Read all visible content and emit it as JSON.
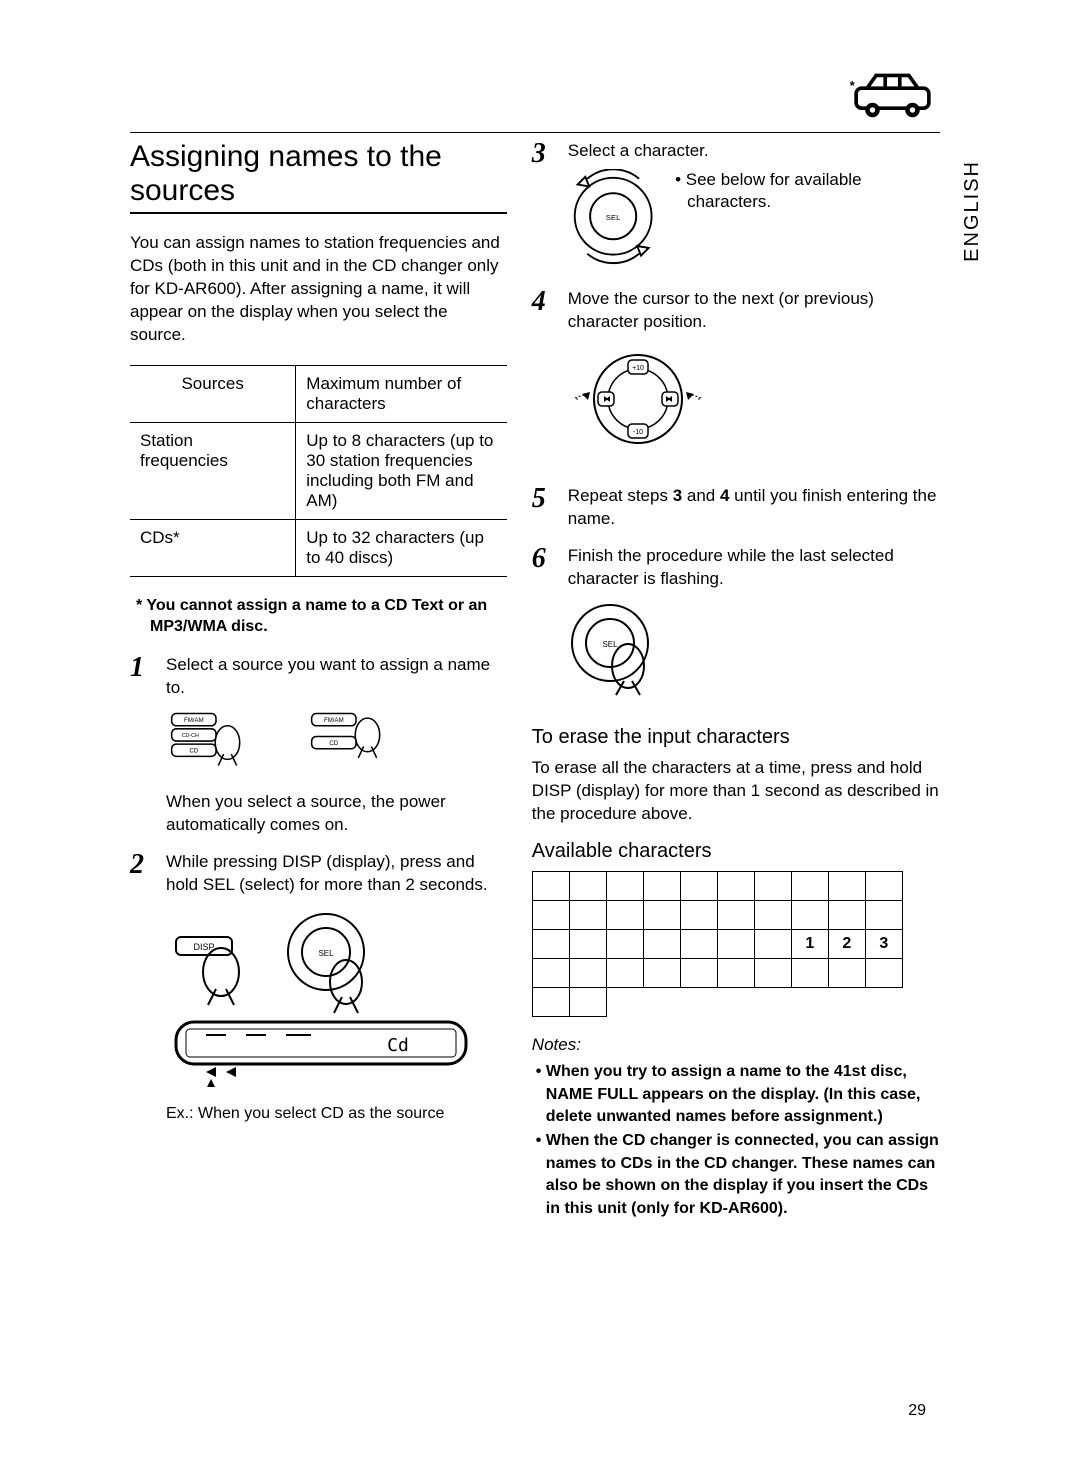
{
  "page_number": "29",
  "language_tab": "ENGLISH",
  "title": "Assigning names to the sources",
  "intro": "You can assign names to station frequencies and CDs (both in this unit and in the CD changer only for KD-AR600).\nAfter assigning a name, it will appear on the display when you select the source.",
  "table": {
    "headers": [
      "Sources",
      "Maximum number of characters"
    ],
    "rows": [
      [
        "Station frequencies",
        "Up to 8 characters (up to 30 station frequencies including both FM and AM)"
      ],
      [
        "CDs*",
        "Up to 32 characters (up to 40 discs)"
      ]
    ]
  },
  "footnote": "* You cannot assign a name to a CD Text or an MP3/WMA disc.",
  "steps_left": [
    {
      "num": "1",
      "text": "Select a source you want to assign a name to.",
      "sub": "When you select a source, the power automatically comes on.",
      "caption": "",
      "buttons": [
        [
          "FM/AM",
          "CD-CH",
          "CD"
        ],
        [
          "FM/AM",
          "CD"
        ]
      ]
    },
    {
      "num": "2",
      "text": "While pressing DISP (display), press and hold SEL (select) for more than 2 seconds.",
      "caption": "Ex.: When you select CD as the source"
    }
  ],
  "steps_right": [
    {
      "num": "3",
      "text": "Select a character.",
      "bullet": "See below for available characters."
    },
    {
      "num": "4",
      "text": "Move the cursor to the next (or previous) character position."
    },
    {
      "num": "5",
      "text": "Repeat steps 3 and 4 until you finish entering the name."
    },
    {
      "num": "6",
      "text": "Finish the procedure while the last selected character is flashing."
    }
  ],
  "erase": {
    "heading": "To erase the input characters",
    "text": "To erase all the characters at a time, press and hold DISP (display) for more than 1 second as described in the procedure above."
  },
  "available": {
    "heading": "Available characters",
    "grid_cols": 10,
    "rows": [
      [
        "",
        "",
        "",
        "",
        "",
        "",
        "",
        "",
        "",
        ""
      ],
      [
        "",
        "",
        "",
        "",
        "",
        "",
        "",
        "",
        "",
        ""
      ],
      [
        "",
        "",
        "",
        "",
        "",
        "",
        "",
        "1",
        "2",
        "3"
      ],
      [
        "",
        "",
        "",
        "",
        "",
        "",
        "",
        "",
        "",
        ""
      ],
      [
        "",
        ""
      ]
    ]
  },
  "notes": {
    "label": "Notes:",
    "items": [
      "When you try to assign a name to the 41st disc, NAME FULL appears on the display. (In this case, delete unwanted names before assignment.)",
      "When the CD changer is connected, you can assign names to CDs in the CD changer. These names can also be shown on the display if you insert the CDs in this unit (only for KD-AR600)."
    ]
  },
  "icons": {
    "step2_display_label": "Cd"
  }
}
